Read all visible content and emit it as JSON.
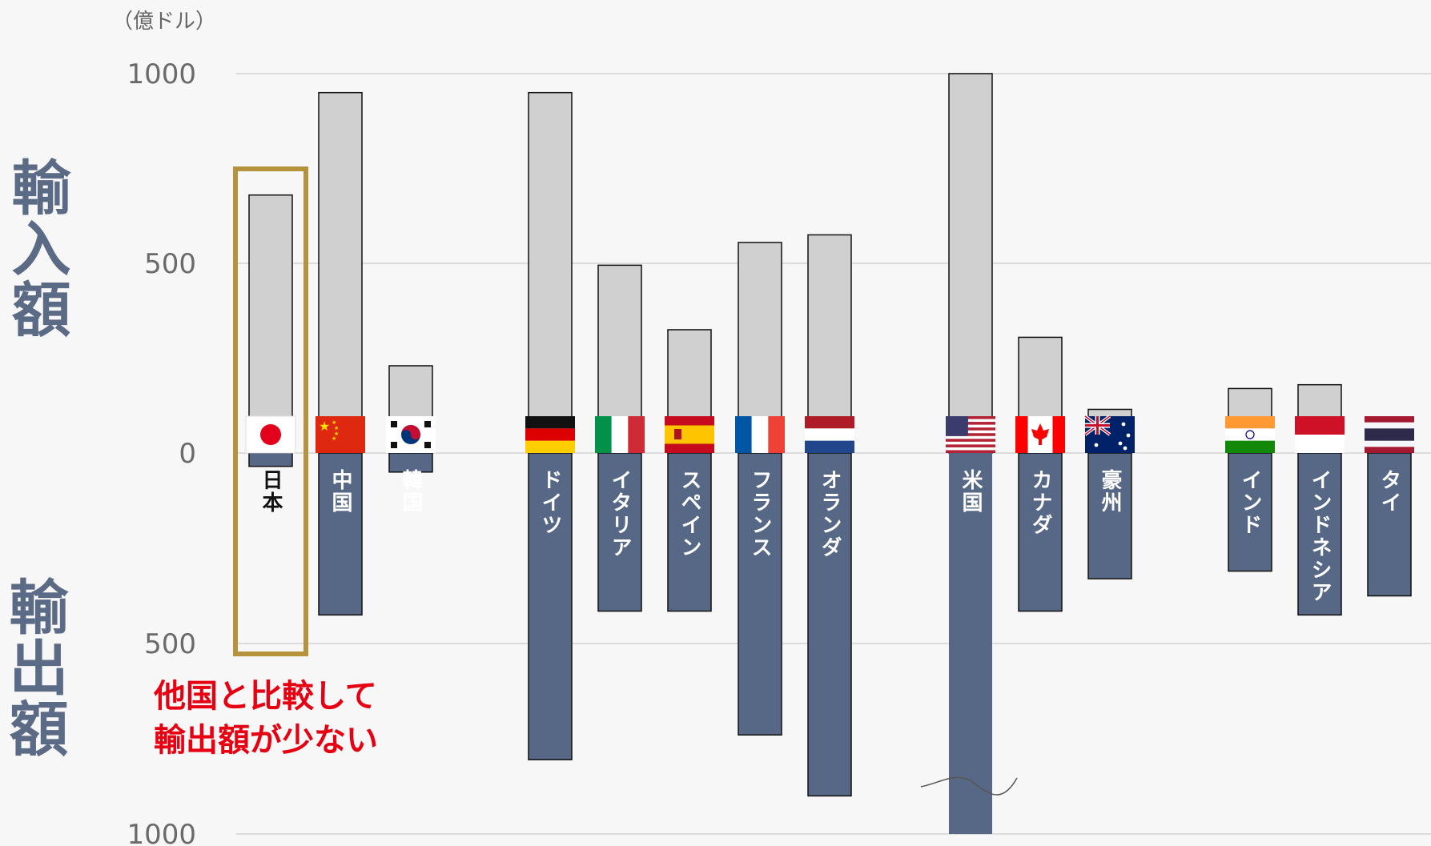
{
  "unit": "（億ドル）",
  "labels": {
    "import": "輸入額",
    "export": "輸出額"
  },
  "annotation": {
    "line1": "他国と比較して",
    "line2": "輸出額が少ない"
  },
  "colors": {
    "import_bar": "#d1d0d1",
    "export_bar": "#566885",
    "highlight_box": "#b5933c",
    "annotation": "#e60012",
    "axis_label": "#5b6b86"
  },
  "chart_data": {
    "type": "bar",
    "ylim_import": [
      0,
      1000
    ],
    "ylim_export": [
      0,
      1000
    ],
    "ticks_import": [
      "1000",
      "500",
      "0"
    ],
    "ticks_export": [
      "500",
      "1000"
    ],
    "grid": true,
    "highlight": "日本",
    "categories": [
      "日本",
      "中国",
      "韓国",
      "ドイツ",
      "イタリア",
      "スペイン",
      "フランス",
      "オランダ",
      "米国",
      "カナダ",
      "豪州",
      "インド",
      "インドネシア",
      "タイ"
    ],
    "series": [
      {
        "name": "輸入額",
        "values": [
          680,
          950,
          230,
          950,
          495,
          325,
          555,
          575,
          1000,
          305,
          115,
          170,
          180,
          95
        ]
      },
      {
        "name": "輸出額",
        "values": [
          35,
          425,
          50,
          805,
          415,
          415,
          740,
          900,
          1000,
          415,
          330,
          310,
          425,
          375
        ]
      }
    ],
    "flags": [
      "japan-flag-icon",
      "china-flag-icon",
      "korea-flag-icon",
      "germany-flag-icon",
      "italy-flag-icon",
      "spain-flag-icon",
      "france-flag-icon",
      "netherlands-flag-icon",
      "usa-flag-icon",
      "canada-flag-icon",
      "australia-flag-icon",
      "india-flag-icon",
      "indonesia-flag-icon",
      "thailand-flag-icon"
    ]
  }
}
